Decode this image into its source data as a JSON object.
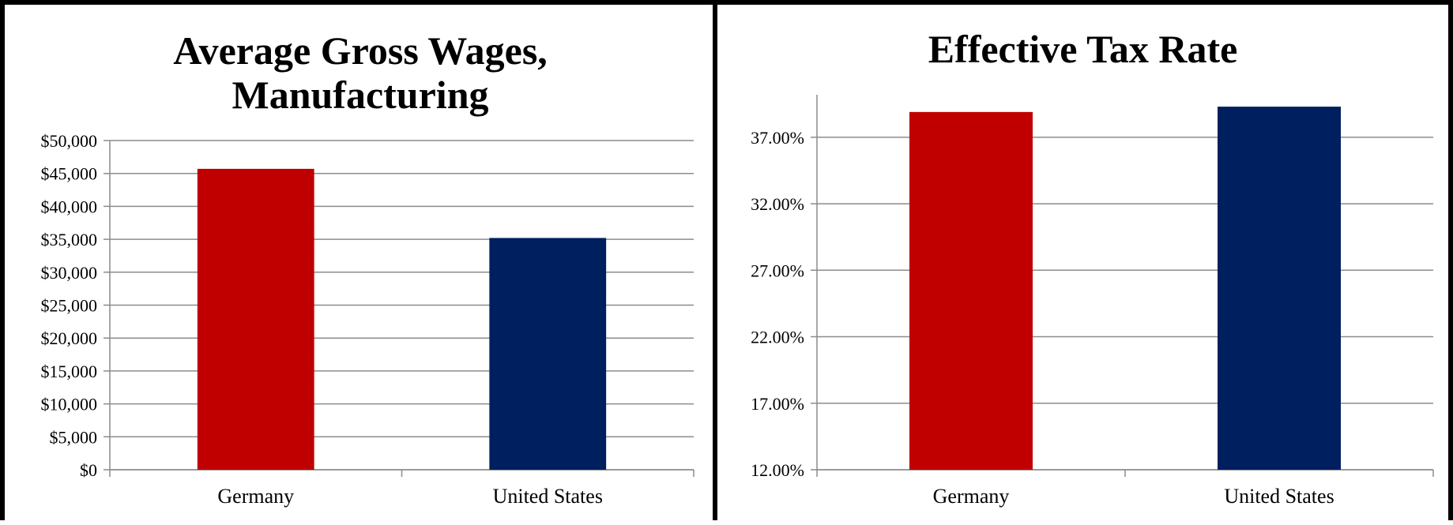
{
  "chart_data": [
    {
      "type": "bar",
      "title_lines": [
        "Average Gross Wages,",
        "Manufacturing"
      ],
      "categories": [
        "Germany",
        "United States"
      ],
      "values": [
        45700,
        35200
      ],
      "colors": [
        "#C00000",
        "#001F5F"
      ],
      "ylim": [
        0,
        50000
      ],
      "yticks": [
        "$0",
        "$5,000",
        "$10,000",
        "$15,000",
        "$20,000",
        "$25,000",
        "$30,000",
        "$35,000",
        "$40,000",
        "$45,000",
        "$50,000"
      ],
      "grid": true
    },
    {
      "type": "bar",
      "title_lines": [
        "Effective Tax Rate"
      ],
      "categories": [
        "Germany",
        "United States"
      ],
      "values": [
        38.9,
        39.3
      ],
      "colors": [
        "#C00000",
        "#001F5F"
      ],
      "ylim": [
        12,
        39.9
      ],
      "yticks": [
        "12.00%",
        "17.00%",
        "22.00%",
        "27.00%",
        "32.00%",
        "37.00%"
      ],
      "ytick_values": [
        12,
        17,
        22,
        27,
        32,
        37
      ],
      "grid": true
    }
  ]
}
